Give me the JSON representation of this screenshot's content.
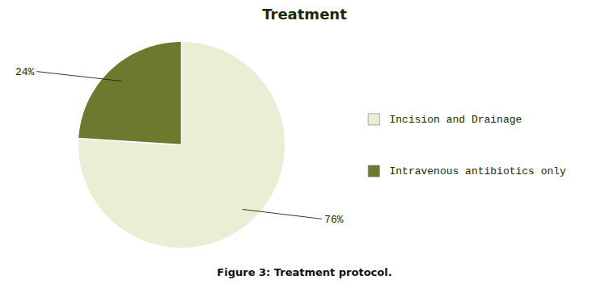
{
  "chart_data": {
    "type": "pie",
    "title": "Treatment",
    "categories": [
      "Incision and Drainage",
      "Intravenous antibiotics only"
    ],
    "values": [
      76,
      24
    ],
    "value_labels": [
      "76%",
      "24%"
    ],
    "colors": [
      "#e8efd5",
      "#6b7a2e"
    ],
    "data_labels": true,
    "legend": "right",
    "caption": "Figure 3: Treatment protocol."
  }
}
